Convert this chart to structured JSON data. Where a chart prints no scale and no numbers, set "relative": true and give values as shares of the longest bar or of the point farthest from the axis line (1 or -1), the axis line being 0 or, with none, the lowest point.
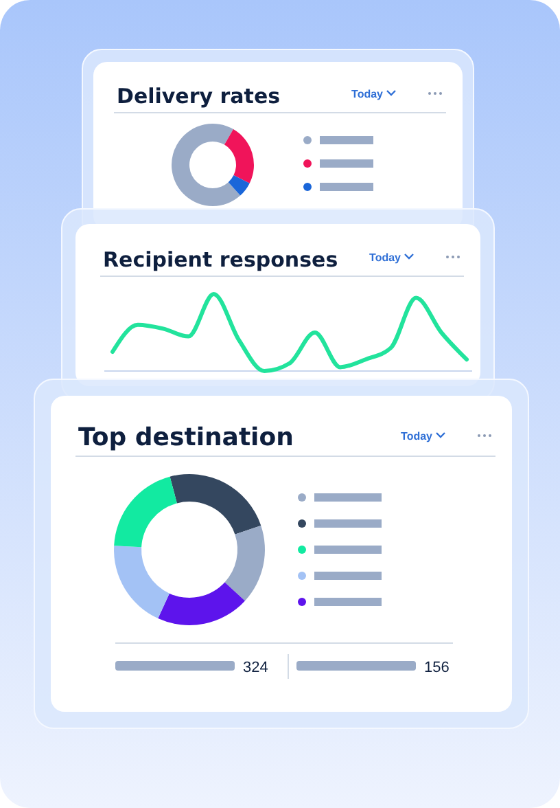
{
  "chart_data": [
    {
      "type": "donut",
      "title": "Delivery rates",
      "annotations": [
        "Today"
      ],
      "categories": [
        null,
        null,
        null
      ],
      "values": [
        70,
        24,
        6
      ],
      "colors": [
        "#9aabc7",
        "#f0145a",
        "#1a66d9"
      ]
    },
    {
      "type": "line",
      "title": "Recipient responses",
      "annotations": [
        "Today"
      ],
      "relative": true,
      "categories": [
        null,
        null,
        null,
        null,
        null,
        null,
        null,
        null,
        null,
        null,
        null,
        null,
        null,
        null,
        null
      ],
      "series": [
        {
          "color": "#22e39c",
          "values": [
            0.25,
            0.6,
            0.55,
            0.45,
            1.0,
            0.4,
            0.0,
            0.1,
            0.5,
            0.05,
            0.15,
            0.3,
            0.95,
            0.5,
            0.15
          ]
        }
      ]
    },
    {
      "type": "donut",
      "title": "Top destination",
      "annotations": [
        "Today",
        "324",
        "156"
      ],
      "categories": [
        null,
        null,
        null,
        null,
        null
      ],
      "values": [
        24,
        17,
        20,
        19,
        20
      ],
      "colors": [
        "#34475f",
        "#9aabc7",
        "#5d14ec",
        "#a3c2f5",
        "#12eaa1"
      ]
    }
  ]
}
